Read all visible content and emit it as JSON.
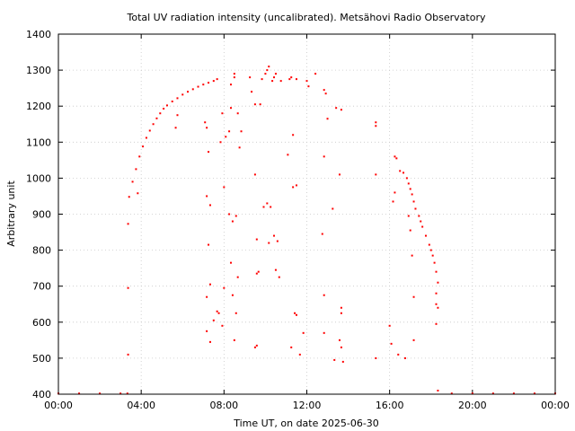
{
  "chart_data": {
    "type": "scatter",
    "title": "Total UV radiation intensity (uncalibrated). Metsähovi Radio Observatory",
    "xlabel": "Time UT, on date 2025-06-30",
    "ylabel": "Arbitrary unit",
    "xlim": [
      "00:00",
      "24:00"
    ],
    "ylim": [
      400,
      1400
    ],
    "x_ticks": [
      "00:00",
      "04:00",
      "08:00",
      "12:00",
      "16:00",
      "20:00",
      "00:00"
    ],
    "y_ticks": [
      "400",
      "500",
      "600",
      "700",
      "800",
      "900",
      "1000",
      "1100",
      "1200",
      "1300",
      "1400"
    ],
    "grid": true,
    "legend": "none",
    "colors": {
      "points": "#ff0000",
      "grid": "#c8c8c8",
      "axes": "#000000"
    },
    "series": [
      {
        "points": [
          [
            "00:00",
            402
          ],
          [
            "01:00",
            402
          ],
          [
            "02:00",
            402
          ],
          [
            "03:00",
            402
          ],
          [
            "03:20",
            402
          ],
          [
            "03:22",
            510
          ],
          [
            "03:22",
            695
          ],
          [
            "03:22",
            873
          ],
          [
            "03:25",
            948
          ],
          [
            "03:35",
            990
          ],
          [
            "03:45",
            1025
          ],
          [
            "03:55",
            1060
          ],
          [
            "04:05",
            1088
          ],
          [
            "04:15",
            1112
          ],
          [
            "04:25",
            1132
          ],
          [
            "04:35",
            1150
          ],
          [
            "04:45",
            1166
          ],
          [
            "04:55",
            1180
          ],
          [
            "05:05",
            1193
          ],
          [
            "05:15",
            1202
          ],
          [
            "05:30",
            1213
          ],
          [
            "05:45",
            1222
          ],
          [
            "06:00",
            1232
          ],
          [
            "06:15",
            1240
          ],
          [
            "06:30",
            1247
          ],
          [
            "06:45",
            1254
          ],
          [
            "07:00",
            1260
          ],
          [
            "07:15",
            1265
          ],
          [
            "07:30",
            1270
          ],
          [
            "07:40",
            1275
          ],
          [
            "03:50",
            958
          ],
          [
            "05:40",
            1140
          ],
          [
            "05:45",
            1175
          ],
          [
            "07:05",
            1155
          ],
          [
            "07:10",
            1140
          ],
          [
            "07:15",
            1073
          ],
          [
            "07:20",
            925
          ],
          [
            "07:10",
            950
          ],
          [
            "07:15",
            815
          ],
          [
            "07:20",
            705
          ],
          [
            "07:10",
            670
          ],
          [
            "07:10",
            575
          ],
          [
            "07:20",
            545
          ],
          [
            "07:30",
            605
          ],
          [
            "07:40",
            630
          ],
          [
            "07:50",
            1100
          ],
          [
            "07:55",
            1180
          ],
          [
            "08:00",
            975
          ],
          [
            "08:05",
            1115
          ],
          [
            "08:15",
            1130
          ],
          [
            "08:20",
            1195
          ],
          [
            "08:20",
            1260
          ],
          [
            "08:30",
            1280
          ],
          [
            "08:30",
            1290
          ],
          [
            "08:40",
            1180
          ],
          [
            "08:45",
            1085
          ],
          [
            "08:50",
            1130
          ],
          [
            "08:20",
            765
          ],
          [
            "08:25",
            675
          ],
          [
            "08:30",
            550
          ],
          [
            "08:35",
            625
          ],
          [
            "08:15",
            900
          ],
          [
            "08:25",
            880
          ],
          [
            "08:35",
            895
          ],
          [
            "08:40",
            725
          ],
          [
            "08:00",
            695
          ],
          [
            "07:45",
            625
          ],
          [
            "07:55",
            590
          ],
          [
            "09:15",
            1280
          ],
          [
            "09:20",
            1240
          ],
          [
            "09:30",
            1205
          ],
          [
            "09:45",
            1205
          ],
          [
            "10:00",
            1290
          ],
          [
            "10:05",
            1300
          ],
          [
            "10:10",
            1310
          ],
          [
            "10:20",
            1270
          ],
          [
            "10:25",
            1280
          ],
          [
            "10:30",
            1290
          ],
          [
            "10:45",
            1270
          ],
          [
            "09:50",
            1275
          ],
          [
            "09:30",
            1010
          ],
          [
            "09:35",
            830
          ],
          [
            "09:40",
            740
          ],
          [
            "09:35",
            735
          ],
          [
            "09:55",
            920
          ],
          [
            "10:05",
            930
          ],
          [
            "10:15",
            920
          ],
          [
            "10:10",
            820
          ],
          [
            "10:25",
            840
          ],
          [
            "10:30",
            745
          ],
          [
            "10:40",
            725
          ],
          [
            "10:35",
            825
          ],
          [
            "09:30",
            530
          ],
          [
            "09:35",
            535
          ],
          [
            "11:10",
            1275
          ],
          [
            "11:15",
            1280
          ],
          [
            "11:30",
            1275
          ],
          [
            "11:20",
            1120
          ],
          [
            "11:30",
            980
          ],
          [
            "11:20",
            975
          ],
          [
            "11:05",
            1065
          ],
          [
            "11:15",
            530
          ],
          [
            "11:30",
            620
          ],
          [
            "11:25",
            625
          ],
          [
            "11:40",
            510
          ],
          [
            "11:50",
            570
          ],
          [
            "12:00",
            1270
          ],
          [
            "12:05",
            1255
          ],
          [
            "12:25",
            1290
          ],
          [
            "12:50",
            1245
          ],
          [
            "12:55",
            1235
          ],
          [
            "13:00",
            1165
          ],
          [
            "12:50",
            1060
          ],
          [
            "12:45",
            845
          ],
          [
            "12:50",
            675
          ],
          [
            "12:50",
            570
          ],
          [
            "13:25",
            1195
          ],
          [
            "13:40",
            1190
          ],
          [
            "13:35",
            1010
          ],
          [
            "13:15",
            915
          ],
          [
            "13:40",
            625
          ],
          [
            "13:40",
            640
          ],
          [
            "13:35",
            550
          ],
          [
            "13:40",
            530
          ],
          [
            "13:45",
            490
          ],
          [
            "13:20",
            495
          ],
          [
            "15:20",
            1155
          ],
          [
            "15:20",
            1145
          ],
          [
            "15:20",
            1010
          ],
          [
            "15:20",
            500
          ],
          [
            "16:00",
            590
          ],
          [
            "16:05",
            540
          ],
          [
            "16:10",
            935
          ],
          [
            "16:15",
            960
          ],
          [
            "16:15",
            1060
          ],
          [
            "16:20",
            1055
          ],
          [
            "16:25",
            510
          ],
          [
            "16:45",
            500
          ],
          [
            "16:30",
            1020
          ],
          [
            "16:40",
            1015
          ],
          [
            "16:50",
            1000
          ],
          [
            "16:55",
            985
          ],
          [
            "17:00",
            970
          ],
          [
            "17:05",
            955
          ],
          [
            "17:10",
            935
          ],
          [
            "17:15",
            915
          ],
          [
            "17:25",
            895
          ],
          [
            "17:30",
            880
          ],
          [
            "17:35",
            865
          ],
          [
            "17:45",
            840
          ],
          [
            "17:55",
            815
          ],
          [
            "18:00",
            800
          ],
          [
            "18:05",
            785
          ],
          [
            "18:10",
            765
          ],
          [
            "18:15",
            740
          ],
          [
            "18:20",
            710
          ],
          [
            "18:15",
            680
          ],
          [
            "18:15",
            650
          ],
          [
            "18:15",
            595
          ],
          [
            "18:20",
            640
          ],
          [
            "16:55",
            895
          ],
          [
            "17:00",
            855
          ],
          [
            "17:05",
            785
          ],
          [
            "17:10",
            670
          ],
          [
            "17:10",
            550
          ],
          [
            "18:20",
            410
          ],
          [
            "19:00",
            402
          ],
          [
            "20:00",
            402
          ],
          [
            "21:00",
            402
          ],
          [
            "22:00",
            402
          ],
          [
            "23:00",
            402
          ],
          [
            "24:00",
            402
          ]
        ]
      }
    ]
  }
}
